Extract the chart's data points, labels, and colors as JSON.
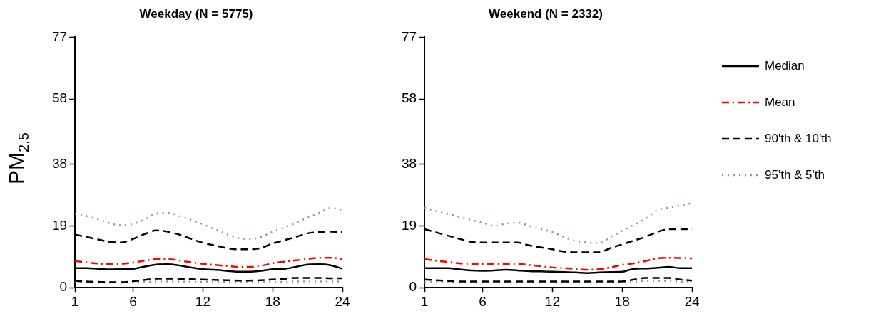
{
  "chart_data": [
    {
      "type": "line",
      "title": "Weekday (N = 5775)",
      "ylabel": "PM$_{2.5}$",
      "x": [
        1,
        2,
        3,
        4,
        5,
        6,
        7,
        8,
        9,
        10,
        11,
        12,
        13,
        14,
        15,
        16,
        17,
        18,
        19,
        20,
        21,
        22,
        23,
        24
      ],
      "xlim": [
        1,
        24
      ],
      "xticks": [
        1,
        6,
        12,
        18,
        24
      ],
      "ylim": [
        0,
        77
      ],
      "yticks": [
        0,
        19,
        38,
        58,
        77
      ],
      "grid": false,
      "legend": "right",
      "marker": "none",
      "series": [
        {
          "name": "Median",
          "color": "#000000",
          "line_style": "solid",
          "values": [
            6,
            6,
            5.8,
            5.6,
            5.7,
            5.8,
            6.5,
            7.1,
            7.2,
            6.8,
            6.2,
            5.7,
            5.5,
            5.2,
            4.9,
            4.9,
            5.2,
            5.7,
            5.8,
            6.4,
            7.1,
            7.2,
            6.9,
            5.8
          ]
        },
        {
          "name": "Mean",
          "color": "#ff0000",
          "line_style": "dashdot",
          "values": [
            8.2,
            7.8,
            7.4,
            7.2,
            7.3,
            7.7,
            8.3,
            8.8,
            8.8,
            8.3,
            7.8,
            7.3,
            7,
            6.7,
            6.4,
            6.4,
            6.7,
            7.5,
            8,
            8.4,
            8.8,
            9.2,
            9.2,
            8.8
          ]
        },
        {
          "name": "90'th & 10'th",
          "color": "#000000",
          "line_style": "dashed",
          "values": [
            16.3,
            15.6,
            14.8,
            14.1,
            13.9,
            15,
            16.5,
            17.6,
            17.2,
            16.3,
            15,
            13.8,
            13,
            12.2,
            11.8,
            11.8,
            12.2,
            13.6,
            14.6,
            15.6,
            16.7,
            17.1,
            17.2,
            17.1
          ]
        },
        {
          "color": "#000000",
          "line_style": "dashed",
          "values": [
            2.1,
            1.9,
            1.8,
            1.7,
            1.7,
            2,
            2.4,
            2.8,
            2.8,
            2.7,
            2.6,
            2.5,
            2.4,
            2.3,
            2.2,
            2.2,
            2.3,
            2.5,
            2.7,
            3,
            3,
            3,
            2.9,
            2.9
          ]
        },
        {
          "name": "95'th & 5'th",
          "color": "#8496b0",
          "line_style": "dotted",
          "values": [
            22.7,
            22,
            21,
            19.8,
            19.2,
            19.6,
            21,
            22.8,
            23,
            22,
            20.8,
            19.5,
            18,
            16.5,
            15.3,
            15,
            15.6,
            17.2,
            18.5,
            20,
            21.5,
            23,
            24.5,
            24
          ]
        },
        {
          "color": "#8496b0",
          "line_style": "dotted",
          "values": [
            1.8,
            1.7,
            1.6,
            1.6,
            1.6,
            1.7,
            1.8,
            1.9,
            1.9,
            1.9,
            1.8,
            1.8,
            1.8,
            1.8,
            1.7,
            1.7,
            1.7,
            1.8,
            1.8,
            1.9,
            1.9,
            1.9,
            1.9,
            1.9
          ]
        }
      ]
    },
    {
      "type": "line",
      "title": "Weekend (N = 2332)",
      "x": [
        1,
        2,
        3,
        4,
        5,
        6,
        7,
        8,
        9,
        10,
        11,
        12,
        13,
        14,
        15,
        16,
        17,
        18,
        19,
        20,
        21,
        22,
        23,
        24
      ],
      "xlim": [
        1,
        24
      ],
      "xticks": [
        1,
        6,
        12,
        18,
        24
      ],
      "ylim": [
        0,
        77
      ],
      "yticks": [
        0,
        19,
        38,
        58,
        77
      ],
      "grid": false,
      "legend": "right",
      "marker": "none",
      "series": [
        {
          "name": "Median",
          "color": "#000000",
          "line_style": "solid",
          "values": [
            6,
            6,
            6,
            5.6,
            5.3,
            5.2,
            5.3,
            5.5,
            5.3,
            5.1,
            5,
            4.9,
            4.8,
            4.7,
            4.5,
            4.7,
            4.8,
            4.9,
            5.8,
            5.9,
            6.1,
            6.4,
            6,
            6
          ]
        },
        {
          "name": "Mean",
          "color": "#ff0000",
          "line_style": "dashdot",
          "values": [
            8.8,
            8.3,
            7.9,
            7.5,
            7.3,
            7.2,
            7.2,
            7.3,
            7.3,
            7,
            6.6,
            6.2,
            6,
            5.8,
            5.5,
            5.7,
            6.2,
            7,
            7.5,
            8.2,
            9,
            9.2,
            9.1,
            9
          ]
        },
        {
          "name": "90'th & 10'th",
          "color": "#000000",
          "line_style": "dashed",
          "values": [
            18,
            17,
            16,
            15,
            14.1,
            13.9,
            13.9,
            13.9,
            13.9,
            13,
            12.4,
            11.8,
            11.1,
            10.9,
            10.9,
            10.9,
            12.2,
            13.3,
            14.5,
            15.6,
            17.1,
            18,
            18,
            18
          ]
        },
        {
          "color": "#000000",
          "line_style": "dashed",
          "values": [
            2.5,
            2.3,
            2.1,
            1.9,
            1.9,
            1.9,
            1.9,
            1.9,
            1.9,
            1.9,
            1.9,
            1.9,
            1.9,
            1.9,
            1.9,
            1.9,
            1.9,
            1.9,
            2.5,
            3,
            3,
            3,
            2.5,
            2.2
          ]
        },
        {
          "name": "95'th & 5'th",
          "color": "#8496b0",
          "line_style": "dotted",
          "values": [
            24.6,
            23.6,
            22.7,
            21.8,
            20.8,
            20,
            19,
            19.7,
            20,
            19,
            18,
            17.1,
            15.6,
            14.3,
            13.9,
            13.7,
            15.6,
            17.5,
            19.3,
            21.2,
            23.8,
            24.6,
            25.3,
            26
          ]
        },
        {
          "color": "#8496b0",
          "line_style": "dotted",
          "values": [
            1.7,
            1.7,
            1.7,
            1.7,
            1.7,
            1.7,
            1.7,
            1.7,
            1.7,
            1.7,
            1.7,
            1.7,
            1.7,
            1.7,
            1.7,
            1.7,
            1.7,
            1.7,
            1.8,
            2.1,
            2.1,
            2.1,
            1.9,
            1.8
          ]
        }
      ]
    }
  ]
}
